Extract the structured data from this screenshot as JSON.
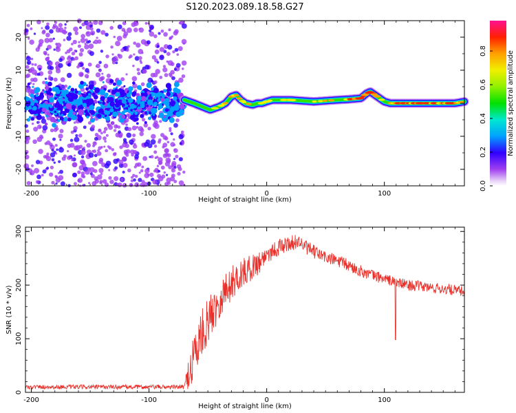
{
  "title": "S120.2023.089.18.58.G27",
  "colors": {
    "snr_line": "#e8312b",
    "background": "#ffffff"
  },
  "chart_data": [
    {
      "type": "heatmap",
      "xlabel": "Height of straight line (km)",
      "ylabel": "Frequency (Hz)",
      "xlim": [
        -205,
        168
      ],
      "ylim": [
        -25,
        25
      ],
      "xticks": [
        -200,
        -100,
        0,
        100
      ],
      "yticks": [
        -20,
        -10,
        0,
        10,
        20
      ],
      "colorbar": {
        "label": "Normalized spectral amplitude",
        "range": [
          0.0,
          0.98
        ],
        "ticks": [
          "0.0",
          "0.2",
          "0.4",
          "0.6",
          "0.8"
        ],
        "colormap": "rainbow"
      },
      "ridge": {
        "x": [
          -70,
          -62,
          -55,
          -48,
          -44,
          -40,
          -35,
          -30,
          -26,
          -22,
          -18,
          -12,
          -8,
          -4,
          0,
          5,
          20,
          40,
          60,
          70,
          80,
          85,
          88,
          92,
          96,
          100,
          105,
          110,
          120,
          140,
          160,
          168
        ],
        "y": [
          1,
          0,
          -1,
          -2,
          -1.5,
          -1,
          0,
          2,
          2.5,
          1,
          0,
          -0.5,
          0,
          0,
          0.5,
          1,
          1,
          0.5,
          1,
          1.2,
          1.5,
          3,
          3.5,
          2.5,
          1.5,
          0.5,
          0,
          0,
          0,
          0,
          0,
          0.5
        ]
      },
      "noise_region": {
        "x_start": -205,
        "x_end": -70,
        "y_core": [
          -4,
          4
        ],
        "y_scatter": [
          -25,
          25
        ]
      }
    },
    {
      "type": "line",
      "xlabel": "Height of straight line (km)",
      "ylabel": "SNR (10 * v/v)",
      "xlim": [
        -205,
        168
      ],
      "ylim": [
        0,
        308
      ],
      "xticks": [
        -200,
        -100,
        0,
        100
      ],
      "yticks": [
        0,
        100,
        200,
        300
      ],
      "series": [
        {
          "envelope_x": [
            -205,
            -70,
            -63,
            -55,
            -45,
            -35,
            -25,
            -15,
            -5,
            0,
            10,
            20,
            28,
            30,
            40,
            50,
            60,
            70,
            80,
            90,
            100,
            110,
            120,
            130,
            140,
            150,
            160,
            168
          ],
          "envelope_y": [
            10,
            10,
            60,
            110,
            155,
            190,
            215,
            230,
            245,
            258,
            270,
            278,
            282,
            275,
            262,
            252,
            245,
            236,
            226,
            218,
            212,
            205,
            200,
            198,
            195,
            193,
            190,
            188
          ],
          "noise_amplitude": [
            4,
            4,
            55,
            45,
            40,
            35,
            30,
            25,
            22,
            18,
            16,
            14,
            14,
            13,
            13,
            12,
            12,
            12,
            11,
            11,
            10,
            10,
            10,
            10,
            10,
            10,
            10,
            10
          ],
          "dip": {
            "x": 109.5,
            "y": 98
          }
        }
      ]
    }
  ]
}
